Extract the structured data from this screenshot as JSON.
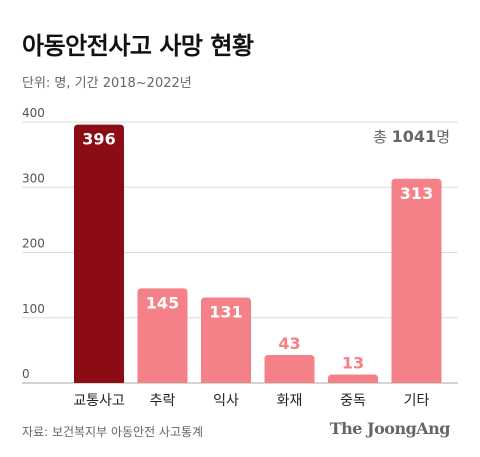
{
  "title": "아동안전사고 사망 현황",
  "subtitle": "단위: 명, 기간 2018~2022년",
  "total": {
    "prefix": "총",
    "value": "1041",
    "unit": "명"
  },
  "source": "자료: 보건복지부 아동안전 사고통계",
  "brand": "The JoongAng",
  "colors": {
    "highlight": "#8b0c14",
    "normal": "#f58188",
    "grid": "#dddddd",
    "axis": "#aaaaaa"
  },
  "chart_data": {
    "type": "bar",
    "categories": [
      "교통사고",
      "추락",
      "익사",
      "화재",
      "중독",
      "기타"
    ],
    "values": [
      396,
      145,
      131,
      43,
      13,
      313
    ],
    "highlight_index": 0,
    "yticks": [
      0,
      100,
      200,
      300,
      400
    ],
    "ylim": [
      0,
      400
    ],
    "title": "아동안전사고 사망 현황",
    "xlabel": "",
    "ylabel": "",
    "grid": true
  }
}
